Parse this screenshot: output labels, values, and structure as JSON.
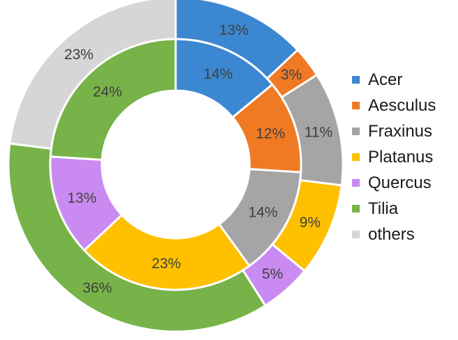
{
  "chart_data": {
    "type": "donut",
    "categories": [
      "Acer",
      "Aesculus",
      "Fraxinus",
      "Platanus",
      "Quercus",
      "Tilia",
      "others"
    ],
    "colors": [
      "#3c87d1",
      "#f07a24",
      "#a5a5a5",
      "#ffc000",
      "#c98bf1",
      "#77b348",
      "#d6d6d6"
    ],
    "series": [
      {
        "ring": "inner",
        "slices": [
          {
            "category": "Acer",
            "value": 14,
            "label": "14%"
          },
          {
            "category": "Aesculus",
            "value": 12,
            "label": "12%"
          },
          {
            "category": "Fraxinus",
            "value": 14,
            "label": "14%"
          },
          {
            "category": "Platanus",
            "value": 23,
            "label": "23%"
          },
          {
            "category": "Quercus",
            "value": 13,
            "label": "13%"
          },
          {
            "category": "Tilia",
            "value": 24,
            "label": "24%"
          }
        ]
      },
      {
        "ring": "outer",
        "slices": [
          {
            "category": "Acer",
            "value": 13,
            "label": "13%"
          },
          {
            "category": "Aesculus",
            "value": 3,
            "label": "3%"
          },
          {
            "category": "Fraxinus",
            "value": 11,
            "label": "11%"
          },
          {
            "category": "Platanus",
            "value": 9,
            "label": "9%"
          },
          {
            "category": "Quercus",
            "value": 5,
            "label": "5%"
          },
          {
            "category": "Tilia",
            "value": 36,
            "label": "36%"
          },
          {
            "category": "others",
            "value": 23,
            "label": "23%"
          }
        ]
      }
    ],
    "legend": "right"
  }
}
